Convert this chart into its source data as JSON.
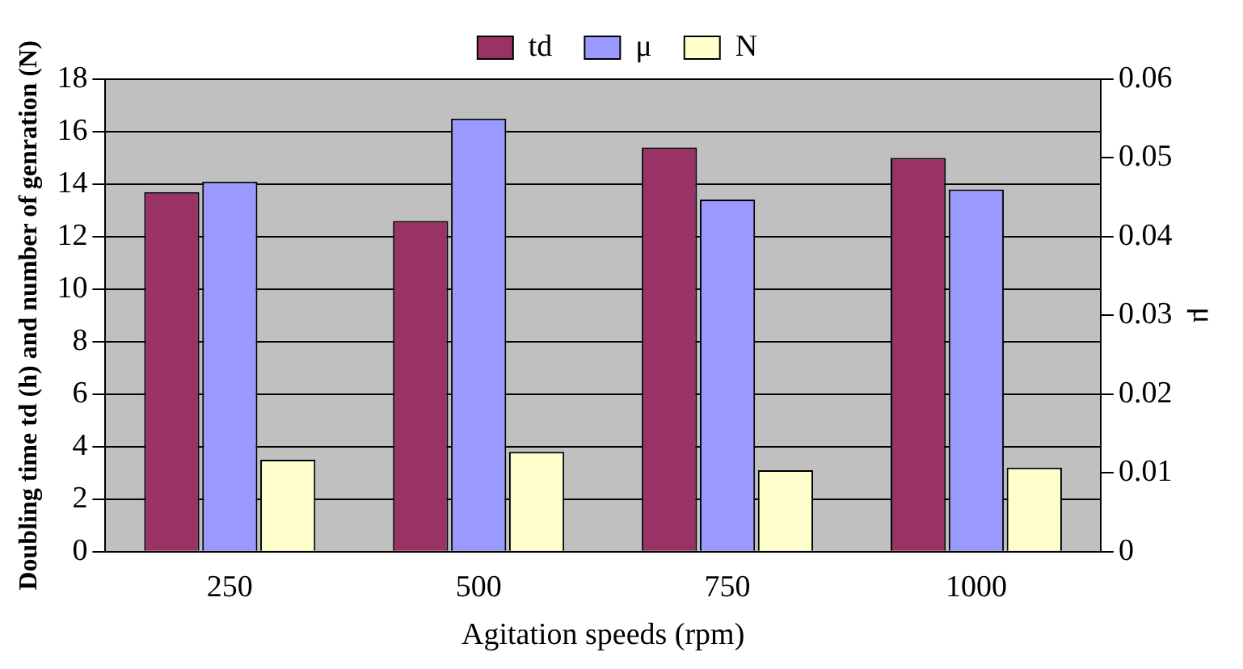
{
  "chart_data": {
    "type": "bar",
    "xlabel": "Agitation speeds (rpm)",
    "ylabel": "Doubling time td (h) and number of genration (N)",
    "y2label": "μ",
    "categories": [
      "250",
      "500",
      "750",
      "1000"
    ],
    "series": [
      {
        "name": "td",
        "color": "#993366",
        "values": [
          13.7,
          12.6,
          15.4,
          15.0
        ]
      },
      {
        "name": "μ",
        "color": "#9999ff",
        "values": [
          0.047,
          0.055,
          0.0447,
          0.046
        ],
        "axis": "y2"
      },
      {
        "name": "N",
        "color": "#ffffcc",
        "values": [
          3.5,
          3.8,
          3.1,
          3.2
        ]
      }
    ],
    "ylim": [
      0,
      18
    ],
    "yticks": [
      0,
      2,
      4,
      6,
      8,
      10,
      12,
      14,
      16,
      18
    ],
    "y2lim": [
      0,
      0.06
    ],
    "y2ticks": [
      0,
      0.01,
      0.02,
      0.03,
      0.04,
      0.05,
      0.06
    ],
    "grid": "y",
    "legend": "top"
  }
}
